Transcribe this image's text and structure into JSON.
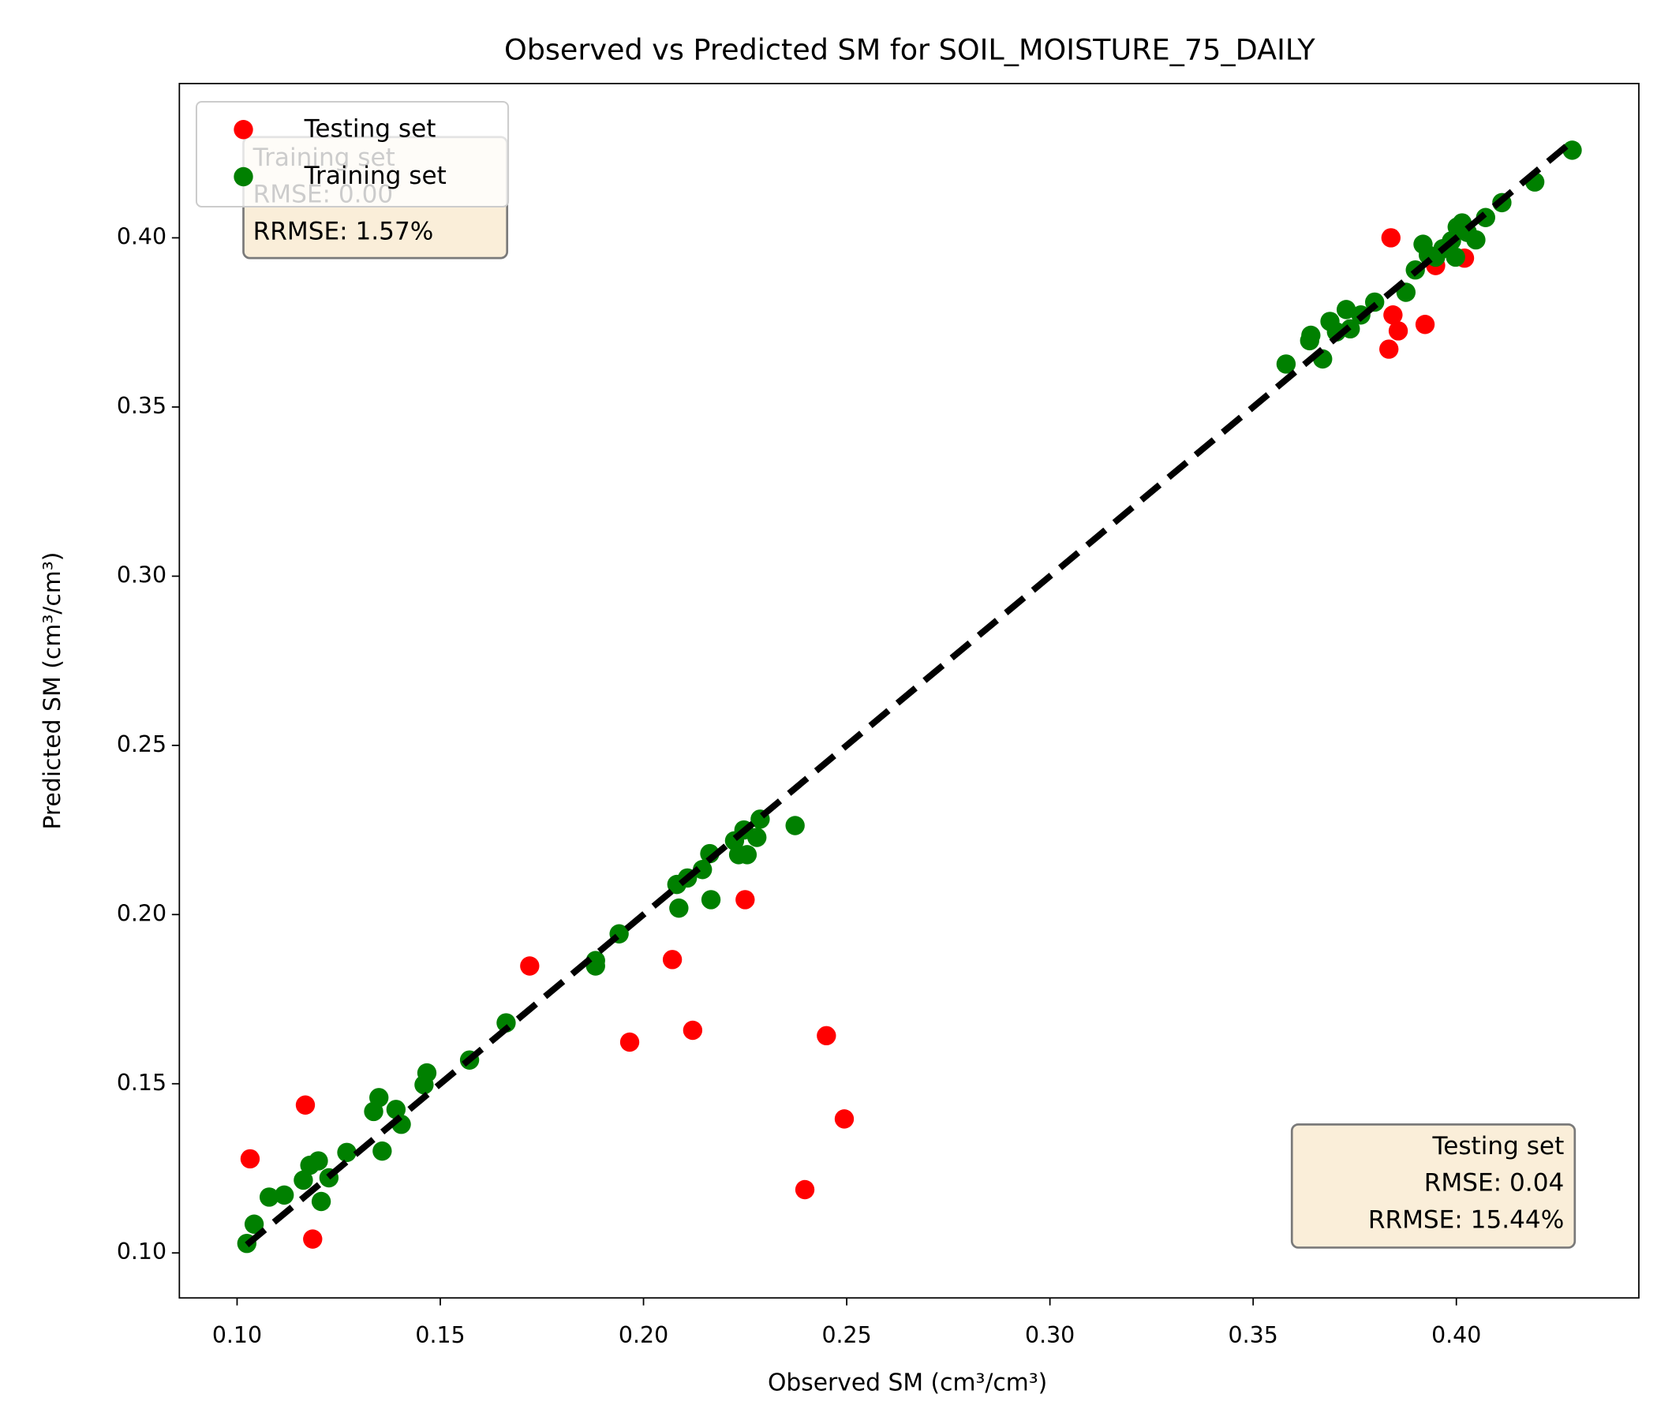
{
  "chart_data": {
    "type": "scatter",
    "title": "Observed vs Predicted SM for SOIL_MOISTURE_75_DAILY",
    "x_label": "Observed SM (cm³/cm³)",
    "y_label": "Predicted SM (cm³/cm³)",
    "xlim": [
      0.0858,
      0.4449
    ],
    "ylim": [
      0.0867,
      0.4456
    ],
    "xticks": [
      {
        "value": 0.1,
        "label": "0.10"
      },
      0.15,
      {
        "value": 0.2,
        "label": "0.20"
      },
      0.25,
      {
        "value": 0.3,
        "label": "0.30"
      },
      0.35,
      {
        "value": 0.4,
        "label": "0.40"
      }
    ],
    "yticks": [
      {
        "value": 0.1,
        "label": "0.10"
      },
      0.15,
      {
        "value": 0.2,
        "label": "0.20"
      },
      0.25,
      {
        "value": 0.3,
        "label": "0.30"
      },
      0.35,
      {
        "value": 0.4,
        "label": "0.40"
      }
    ],
    "legend": "upper left",
    "series": [
      {
        "name": "Testing set",
        "color": "#ff0000",
        "x": [
          0.1032,
          0.1168,
          0.1186,
          0.172,
          0.1966,
          0.2071,
          0.2121,
          0.225,
          0.2397,
          0.245,
          0.2494,
          0.3839,
          0.3834,
          0.3844,
          0.3857,
          0.3923,
          0.3949,
          0.402
        ],
        "y": [
          0.1278,
          0.1437,
          0.1041,
          0.1848,
          0.1623,
          0.1867,
          0.1658,
          0.2044,
          0.1187,
          0.1642,
          0.1396,
          0.4,
          0.3671,
          0.3772,
          0.3725,
          0.3744,
          0.3918,
          0.394
        ]
      },
      {
        "name": "Training set",
        "color": "#008000",
        "x": [
          0.1024,
          0.1042,
          0.1079,
          0.1116,
          0.1163,
          0.1179,
          0.12,
          0.1207,
          0.1226,
          0.127,
          0.1336,
          0.1349,
          0.1357,
          0.1391,
          0.1404,
          0.146,
          0.1467,
          0.1572,
          0.1662,
          0.1882,
          0.1882,
          0.194,
          0.2082,
          0.2087,
          0.2108,
          0.2145,
          0.2163,
          0.2166,
          0.2224,
          0.2234,
          0.2247,
          0.2255,
          0.2279,
          0.2287,
          0.2373,
          0.3581,
          0.3639,
          0.3642,
          0.3671,
          0.3689,
          0.3705,
          0.3729,
          0.3739,
          0.3765,
          0.3799,
          0.3876,
          0.3899,
          0.3918,
          0.3931,
          0.3949,
          0.3967,
          0.3988,
          0.3998,
          0.4002,
          0.4014,
          0.4027,
          0.4048,
          0.4072,
          0.4112,
          0.4193,
          0.4285
        ],
        "y": [
          0.1028,
          0.1085,
          0.1165,
          0.1171,
          0.1215,
          0.1259,
          0.1272,
          0.1152,
          0.1222,
          0.1297,
          0.1418,
          0.1459,
          0.1301,
          0.1424,
          0.138,
          0.1497,
          0.1532,
          0.157,
          0.168,
          0.1848,
          0.1864,
          0.1943,
          0.2089,
          0.2019,
          0.2108,
          0.2133,
          0.218,
          0.2044,
          0.2218,
          0.2177,
          0.225,
          0.2177,
          0.2228,
          0.2282,
          0.2263,
          0.3627,
          0.3696,
          0.3712,
          0.3642,
          0.3753,
          0.3722,
          0.3788,
          0.3731,
          0.3772,
          0.381,
          0.3839,
          0.3905,
          0.3981,
          0.3949,
          0.3943,
          0.3968,
          0.3991,
          0.3943,
          0.4032,
          0.4044,
          0.4016,
          0.3994,
          0.406,
          0.4104,
          0.4165,
          0.4259
        ]
      }
    ],
    "reference_line": {
      "x": [
        0.1024,
        0.4285
      ],
      "y": [
        0.1024,
        0.4285
      ],
      "color": "#000000",
      "style": "dashed"
    },
    "annotations": [
      {
        "lines": [
          "Training set",
          "RMSE: 0.00",
          "RRMSE: 1.57%"
        ]
      },
      {
        "lines": [
          "Testing set",
          "RMSE: 0.04",
          "RRMSE: 15.44%"
        ]
      }
    ]
  }
}
